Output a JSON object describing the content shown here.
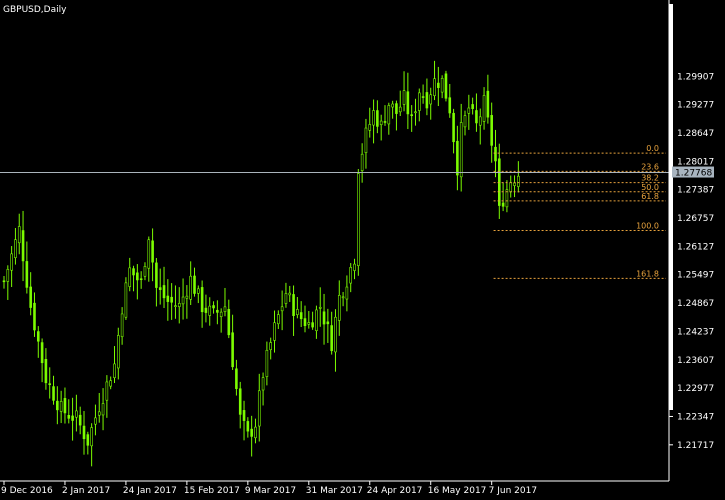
{
  "chart_data": {
    "type": "candlestick",
    "title": "GBPUSD,Daily",
    "colors": {
      "background": "#000000",
      "candle": "#7cfc00",
      "axis": "#ffffff",
      "fibonacci": "#e8a33d",
      "bid_line": "#aab4bc",
      "price_tag_bg": "#a9b5c0"
    },
    "y_axis": {
      "ylim": [
        1.20913,
        1.31602
      ],
      "ticks": [
        "1.29907",
        "1.29277",
        "1.28647",
        "1.28017",
        "1.27387",
        "1.26757",
        "1.26127",
        "1.25497",
        "1.24867",
        "1.24237",
        "1.23607",
        "1.22977",
        "1.22347",
        "1.21717"
      ]
    },
    "x_axis": {
      "labels": [
        "9 Dec 2016",
        "2 Jan 2017",
        "24 Jan 2017",
        "15 Feb 2017",
        "9 Mar 2017",
        "31 Mar 2017",
        "24 Apr 2017",
        "16 May 2017",
        "7 Jun 2017"
      ],
      "label_bars": [
        0,
        16,
        32,
        48,
        64,
        80,
        96,
        112,
        128
      ]
    },
    "bars_total": 136,
    "current_price": "1.27768",
    "close_path": [
      [
        0,
        1.2535
      ],
      [
        4,
        1.265
      ],
      [
        7,
        1.248
      ],
      [
        11,
        1.232
      ],
      [
        15,
        1.225
      ],
      [
        19,
        1.223
      ],
      [
        22,
        1.218
      ],
      [
        25,
        1.226
      ],
      [
        29,
        1.235
      ],
      [
        31,
        1.248
      ],
      [
        33,
        1.256
      ],
      [
        36,
        1.253
      ],
      [
        38,
        1.264
      ],
      [
        40,
        1.252
      ],
      [
        43,
        1.249
      ],
      [
        46,
        1.248
      ],
      [
        49,
        1.254
      ],
      [
        52,
        1.248
      ],
      [
        55,
        1.246
      ],
      [
        58,
        1.248
      ],
      [
        60,
        1.236
      ],
      [
        62,
        1.223
      ],
      [
        64,
        1.219
      ],
      [
        66,
        1.222
      ],
      [
        68,
        1.233
      ],
      [
        71,
        1.243
      ],
      [
        74,
        1.251
      ],
      [
        77,
        1.246
      ],
      [
        80,
        1.244
      ],
      [
        83,
        1.248
      ],
      [
        86,
        1.24
      ],
      [
        88,
        1.25
      ],
      [
        90,
        1.254
      ],
      [
        92,
        1.259
      ],
      [
        93,
        1.279
      ],
      [
        95,
        1.286
      ],
      [
        97,
        1.291
      ],
      [
        99,
        1.288
      ],
      [
        101,
        1.293
      ],
      [
        103,
        1.291
      ],
      [
        105,
        1.294
      ],
      [
        107,
        1.289
      ],
      [
        109,
        1.296
      ],
      [
        111,
        1.294
      ],
      [
        113,
        1.298
      ],
      [
        115,
        1.298
      ],
      [
        117,
        1.292
      ],
      [
        119,
        1.279
      ],
      [
        120,
        1.287
      ],
      [
        122,
        1.292
      ],
      [
        124,
        1.288
      ],
      [
        126,
        1.293
      ],
      [
        129,
        1.28
      ],
      [
        130,
        1.269
      ],
      [
        131,
        1.272
      ],
      [
        133,
        1.276
      ],
      [
        135,
        1.2775
      ]
    ],
    "fibonacci": {
      "high": 1.282,
      "low": 1.2648,
      "levels": [
        {
          "label": "0.0",
          "ratio": 0.0
        },
        {
          "label": "23.6",
          "ratio": 0.236
        },
        {
          "label": "38.2",
          "ratio": 0.382
        },
        {
          "label": "50.0",
          "ratio": 0.5
        },
        {
          "label": "61.8",
          "ratio": 0.618
        },
        {
          "label": "100.0",
          "ratio": 1.0
        },
        {
          "label": "161.8",
          "ratio": 1.618
        }
      ]
    }
  }
}
